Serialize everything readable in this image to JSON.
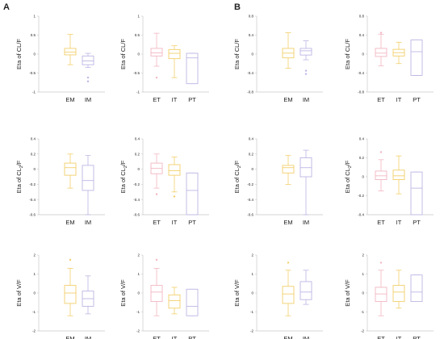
{
  "panels": [
    {
      "label": "A"
    },
    {
      "label": "B"
    }
  ],
  "colors": {
    "yellow": "#F2CF6B",
    "purple": "#BDB6E4",
    "pink": "#F2B6C2"
  },
  "chart_data": [
    {
      "type": "boxplot",
      "panel": "A",
      "ylabel_main": "Eta of CL/F",
      "ylabel_sub": "",
      "ylabel_tail": "",
      "ylim": [
        -1,
        1
      ],
      "yticks": [
        "1",
        "0.5",
        "0",
        "-0.5",
        "-1"
      ],
      "categories": [
        "EM",
        "IM"
      ],
      "cat_slots": [
        1,
        2
      ],
      "boxes": [
        {
          "color": "#F2CF6B",
          "min": -0.28,
          "q1": -0.02,
          "median": 0.05,
          "q3": 0.15,
          "max": 0.52,
          "outliers": []
        },
        {
          "color": "#BDB6E4",
          "min": -0.35,
          "q1": -0.28,
          "median": -0.18,
          "q3": -0.05,
          "max": 0.02,
          "outliers": [
            -0.62,
            -0.72
          ]
        }
      ]
    },
    {
      "type": "boxplot",
      "panel": "A",
      "ylabel_main": "Eta of CL/F",
      "ylabel_sub": "",
      "ylabel_tail": "",
      "ylim": [
        -1,
        1
      ],
      "yticks": [
        "1",
        "0.5",
        "0",
        "-0.5",
        "-1"
      ],
      "categories": [
        "ET",
        "IT",
        "PT"
      ],
      "cat_slots": [
        0,
        1,
        2
      ],
      "boxes": [
        {
          "color": "#F2B6C2",
          "min": -0.32,
          "q1": -0.05,
          "median": 0.03,
          "q3": 0.15,
          "max": 0.55,
          "outliers": [
            -0.62
          ]
        },
        {
          "color": "#F2CF6B",
          "min": -0.62,
          "q1": -0.12,
          "median": 0.02,
          "q3": 0.12,
          "max": 0.22,
          "outliers": []
        },
        {
          "color": "#BDB6E4",
          "min": -0.78,
          "q1": -0.78,
          "median": -0.1,
          "q3": 0.02,
          "max": 0.02,
          "outliers": []
        }
      ]
    },
    {
      "type": "boxplot",
      "panel": "B",
      "ylabel_main": "Eta of CL/F",
      "ylabel_sub": "",
      "ylabel_tail": "",
      "ylim": [
        -0.8,
        0.8
      ],
      "yticks": [
        "0.8",
        "0.4",
        "0",
        "-0.4",
        "-0.8"
      ],
      "categories": [
        "EM",
        "IM"
      ],
      "cat_slots": [
        1,
        2
      ],
      "boxes": [
        {
          "color": "#F2CF6B",
          "min": -0.3,
          "q1": -0.08,
          "median": 0.02,
          "q3": 0.12,
          "max": 0.45,
          "outliers": []
        },
        {
          "color": "#BDB6E4",
          "min": -0.12,
          "q1": -0.02,
          "median": 0.07,
          "q3": 0.12,
          "max": 0.28,
          "outliers": [
            -0.35,
            -0.42
          ]
        }
      ]
    },
    {
      "type": "boxplot",
      "panel": "B",
      "ylabel_main": "Eta of CL/F",
      "ylabel_sub": "",
      "ylabel_tail": "",
      "ylim": [
        -0.8,
        0.8
      ],
      "yticks": [
        "0.8",
        "0.4",
        "0",
        "-0.4",
        "-0.8"
      ],
      "categories": [
        "ET",
        "IT",
        "PT"
      ],
      "cat_slots": [
        0,
        1,
        2
      ],
      "boxes": [
        {
          "color": "#F2B6C2",
          "min": -0.25,
          "q1": -0.05,
          "median": 0.02,
          "q3": 0.12,
          "max": 0.42,
          "outliers": [
            0.45
          ]
        },
        {
          "color": "#F2CF6B",
          "min": -0.2,
          "q1": -0.04,
          "median": 0.03,
          "q3": 0.1,
          "max": 0.25,
          "outliers": []
        },
        {
          "color": "#BDB6E4",
          "min": -0.45,
          "q1": -0.45,
          "median": 0.05,
          "q3": 0.3,
          "max": 0.3,
          "outliers": []
        }
      ]
    },
    {
      "type": "boxplot",
      "panel": "A",
      "ylabel_main": "Eta of CL",
      "ylabel_sub": "2",
      "ylabel_tail": "/F",
      "ylim": [
        -0.6,
        0.4
      ],
      "yticks": [
        "0.4",
        "0.2",
        "0",
        "-0.2",
        "-0.4",
        "-0.6"
      ],
      "categories": [
        "EM",
        "IM"
      ],
      "cat_slots": [
        1,
        2
      ],
      "boxes": [
        {
          "color": "#F2CF6B",
          "min": -0.25,
          "q1": -0.08,
          "median": 0.02,
          "q3": 0.08,
          "max": 0.2,
          "outliers": []
        },
        {
          "color": "#BDB6E4",
          "min": -0.6,
          "q1": -0.28,
          "median": -0.15,
          "q3": 0.05,
          "max": 0.18,
          "outliers": []
        }
      ]
    },
    {
      "type": "boxplot",
      "panel": "A",
      "ylabel_main": "Eta of CL",
      "ylabel_sub": "2",
      "ylabel_tail": "/F",
      "ylim": [
        -0.6,
        0.4
      ],
      "yticks": [
        "0.4",
        "0.2",
        "0",
        "-0.2",
        "-0.4",
        "-0.6"
      ],
      "categories": [
        "ET",
        "IT",
        "PT"
      ],
      "cat_slots": [
        0,
        1,
        2
      ],
      "boxes": [
        {
          "color": "#F2B6C2",
          "min": -0.25,
          "q1": -0.06,
          "median": 0.01,
          "q3": 0.08,
          "max": 0.2,
          "outliers": [
            -0.33
          ]
        },
        {
          "color": "#F2CF6B",
          "min": -0.3,
          "q1": -0.08,
          "median": -0.02,
          "q3": 0.06,
          "max": 0.16,
          "outliers": [
            -0.36
          ]
        },
        {
          "color": "#BDB6E4",
          "min": -0.6,
          "q1": -0.6,
          "median": -0.28,
          "q3": -0.05,
          "max": -0.05,
          "outliers": []
        }
      ]
    },
    {
      "type": "boxplot",
      "panel": "B",
      "ylabel_main": "Eta of CL",
      "ylabel_sub": "2",
      "ylabel_tail": "/F",
      "ylim": [
        -0.6,
        0.4
      ],
      "yticks": [
        "0.4",
        "0.2",
        "0",
        "-0.2",
        "-0.4",
        "-0.6"
      ],
      "categories": [
        "EM",
        "IM"
      ],
      "cat_slots": [
        1,
        2
      ],
      "boxes": [
        {
          "color": "#F2CF6B",
          "min": -0.2,
          "q1": -0.05,
          "median": 0.02,
          "q3": 0.05,
          "max": 0.18,
          "outliers": []
        },
        {
          "color": "#BDB6E4",
          "min": -0.6,
          "q1": -0.1,
          "median": 0.02,
          "q3": 0.15,
          "max": 0.25,
          "outliers": []
        }
      ]
    },
    {
      "type": "boxplot",
      "panel": "B",
      "ylabel_main": "Eta of CL",
      "ylabel_sub": "2",
      "ylabel_tail": "/F",
      "ylim": [
        -0.4,
        0.4
      ],
      "yticks": [
        "0.4",
        "0.2",
        "0",
        "-0.2",
        "-0.4"
      ],
      "categories": [
        "ET",
        "IT",
        "PT"
      ],
      "cat_slots": [
        0,
        1,
        2
      ],
      "boxes": [
        {
          "color": "#F2B6C2",
          "min": -0.15,
          "q1": -0.03,
          "median": 0.01,
          "q3": 0.06,
          "max": 0.18,
          "outliers": [
            0.26
          ]
        },
        {
          "color": "#F2CF6B",
          "min": -0.18,
          "q1": -0.03,
          "median": 0.01,
          "q3": 0.07,
          "max": 0.22,
          "outliers": []
        },
        {
          "color": "#BDB6E4",
          "min": -0.4,
          "q1": -0.4,
          "median": -0.12,
          "q3": 0.05,
          "max": 0.05,
          "outliers": []
        }
      ]
    },
    {
      "type": "boxplot",
      "panel": "A",
      "ylabel_main": "Eta of V/F",
      "ylabel_sub": "",
      "ylabel_tail": "",
      "ylim": [
        -2,
        2
      ],
      "yticks": [
        "2",
        "1",
        "0",
        "-1",
        "-2"
      ],
      "categories": [
        "EM",
        "IM"
      ],
      "cat_slots": [
        1,
        2
      ],
      "boxes": [
        {
          "color": "#F2CF6B",
          "min": -1.2,
          "q1": -0.55,
          "median": 0.0,
          "q3": 0.4,
          "max": 1.3,
          "outliers": [
            1.75
          ]
        },
        {
          "color": "#BDB6E4",
          "min": -1.1,
          "q1": -0.7,
          "median": -0.3,
          "q3": 0.1,
          "max": 0.9,
          "outliers": []
        }
      ]
    },
    {
      "type": "boxplot",
      "panel": "A",
      "ylabel_main": "Eta of V/F",
      "ylabel_sub": "",
      "ylabel_tail": "",
      "ylim": [
        -2,
        2
      ],
      "yticks": [
        "2",
        "1",
        "0",
        "-1",
        "-2"
      ],
      "categories": [
        "ET",
        "IT",
        "PT"
      ],
      "cat_slots": [
        0,
        1,
        2
      ],
      "boxes": [
        {
          "color": "#F2B6C2",
          "min": -1.2,
          "q1": -0.45,
          "median": 0.05,
          "q3": 0.4,
          "max": 1.3,
          "outliers": [
            1.75
          ]
        },
        {
          "color": "#F2CF6B",
          "min": -1.1,
          "q1": -0.8,
          "median": -0.4,
          "q3": -0.1,
          "max": 0.3,
          "outliers": []
        },
        {
          "color": "#BDB6E4",
          "min": -1.2,
          "q1": -1.2,
          "median": -0.7,
          "q3": 0.2,
          "max": 0.2,
          "outliers": []
        }
      ]
    },
    {
      "type": "boxplot",
      "panel": "B",
      "ylabel_main": "Eta of V/F",
      "ylabel_sub": "",
      "ylabel_tail": "",
      "ylim": [
        -2,
        2
      ],
      "yticks": [
        "2",
        "1",
        "0",
        "-1",
        "-2"
      ],
      "categories": [
        "EM",
        "IM"
      ],
      "cat_slots": [
        1,
        2
      ],
      "boxes": [
        {
          "color": "#F2CF6B",
          "min": -1.2,
          "q1": -0.55,
          "median": -0.05,
          "q3": 0.35,
          "max": 1.2,
          "outliers": [
            1.6
          ]
        },
        {
          "color": "#BDB6E4",
          "min": -0.6,
          "q1": -0.35,
          "median": 0.05,
          "q3": 0.6,
          "max": 1.2,
          "outliers": []
        }
      ]
    },
    {
      "type": "boxplot",
      "panel": "B",
      "ylabel_main": "Eta of V/F",
      "ylabel_sub": "",
      "ylabel_tail": "",
      "ylim": [
        -2,
        2
      ],
      "yticks": [
        "2",
        "1",
        "0",
        "-1",
        "-2"
      ],
      "categories": [
        "ET",
        "IT",
        "PT"
      ],
      "cat_slots": [
        0,
        1,
        2
      ],
      "boxes": [
        {
          "color": "#F2B6C2",
          "min": -1.2,
          "q1": -0.45,
          "median": -0.05,
          "q3": 0.3,
          "max": 1.2,
          "outliers": [
            1.6
          ]
        },
        {
          "color": "#F2CF6B",
          "min": -0.8,
          "q1": -0.45,
          "median": 0.05,
          "q3": 0.4,
          "max": 1.2,
          "outliers": []
        },
        {
          "color": "#BDB6E4",
          "min": -0.45,
          "q1": -0.45,
          "median": 0.05,
          "q3": 0.95,
          "max": 0.95,
          "outliers": []
        }
      ]
    }
  ]
}
